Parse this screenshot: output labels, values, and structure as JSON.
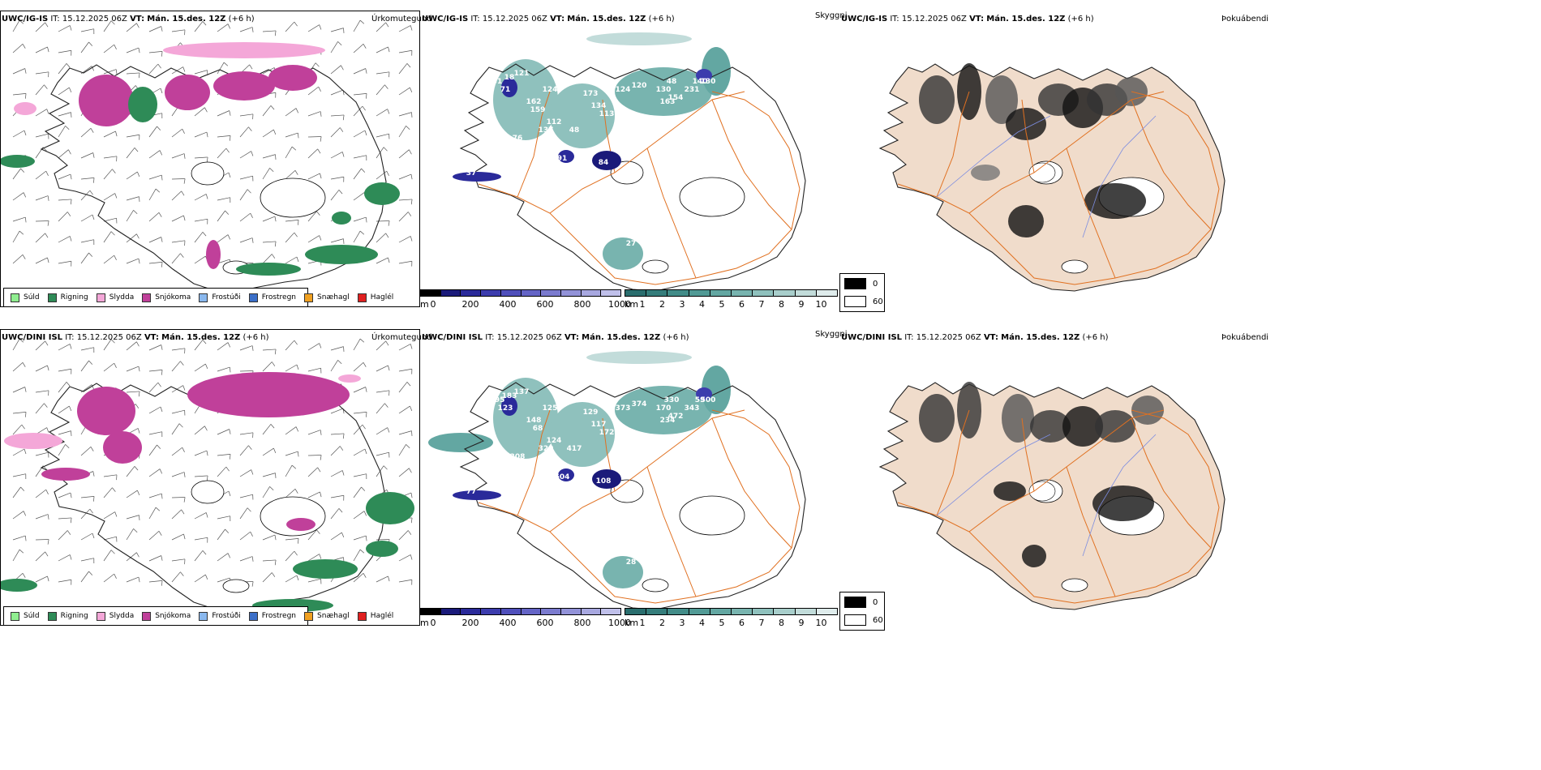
{
  "rows": [
    {
      "model": "UWC/IG-IS",
      "it_label": "IT:",
      "it_value": "15.12.2025 06Z",
      "vt_label": "VT:",
      "vt_value": "Mán. 15.des. 12Z",
      "lead": "(+6 h)"
    },
    {
      "model": "UWC/DINI ISL",
      "it_label": "IT:",
      "it_value": "15.12.2025 06Z",
      "vt_label": "VT:",
      "vt_value": "Mán. 15.des. 12Z",
      "lead": "(+6 h)"
    }
  ],
  "titles": {
    "precip": "Úrkomutegund",
    "ceiling": "Skyggni",
    "fog": "Þokuábendi"
  },
  "precip_legend": [
    {
      "label": "Súld",
      "color": "#90ee90"
    },
    {
      "label": "Rigning",
      "color": "#2e8b57"
    },
    {
      "label": "Slydda",
      "color": "#f4a7d8"
    },
    {
      "label": "Snjókoma",
      "color": "#c0409a"
    },
    {
      "label": "Frostúði",
      "color": "#8ab8ee"
    },
    {
      "label": "Frostregn",
      "color": "#3b6fc8"
    },
    {
      "label": "Snæhagl",
      "color": "#f0a020"
    },
    {
      "label": "Haglél",
      "color": "#e02020"
    }
  ],
  "ceiling_scale": {
    "unit": "m",
    "ticks": [
      "0",
      "200",
      "400",
      "600",
      "800",
      "1000"
    ],
    "colors": [
      "#000000",
      "#1a1a7a",
      "#2a2a9a",
      "#3c3cad",
      "#4f4fbb",
      "#6464c6",
      "#7b7bcf",
      "#9292d8",
      "#a8a8e0",
      "#c0c0ea"
    ]
  },
  "visibility_scale": {
    "unit": "km",
    "ticks": [
      "1",
      "2",
      "3",
      "4",
      "5",
      "6",
      "7",
      "8",
      "9",
      "10"
    ],
    "colors": [
      "#2a6e6e",
      "#357d7b",
      "#428c88",
      "#519a95",
      "#63a7a2",
      "#78b4af",
      "#8fc1bd",
      "#a8cecb",
      "#c2dcda",
      "#dfecec"
    ]
  },
  "fog_scale": {
    "low": "0",
    "high": "60",
    "low_color": "#000000",
    "high_color": "#ffffff"
  },
  "ceiling_labels": {
    "top": [
      "31",
      "18",
      "71",
      "121",
      "124",
      "162",
      "137",
      "159",
      "76",
      "21",
      "91",
      "112",
      "48",
      "173",
      "134",
      "113",
      "124",
      "120",
      "130",
      "48",
      "163",
      "154",
      "140",
      "231",
      "130",
      "84",
      "37",
      "85",
      "27",
      "23"
    ],
    "bottom": [
      "195",
      "183",
      "123",
      "137",
      "125",
      "148",
      "320",
      "68",
      "208",
      "66",
      "604",
      "124",
      "417",
      "129",
      "117",
      "172",
      "373",
      "374",
      "170",
      "330",
      "234",
      "472",
      "59",
      "343",
      "500",
      "108",
      "77",
      "25",
      "28"
    ]
  },
  "colors": {
    "coast": "#000000",
    "roads": "#e07020",
    "fog_land": "#f0dccb",
    "fog_river": "#7d8de0"
  }
}
